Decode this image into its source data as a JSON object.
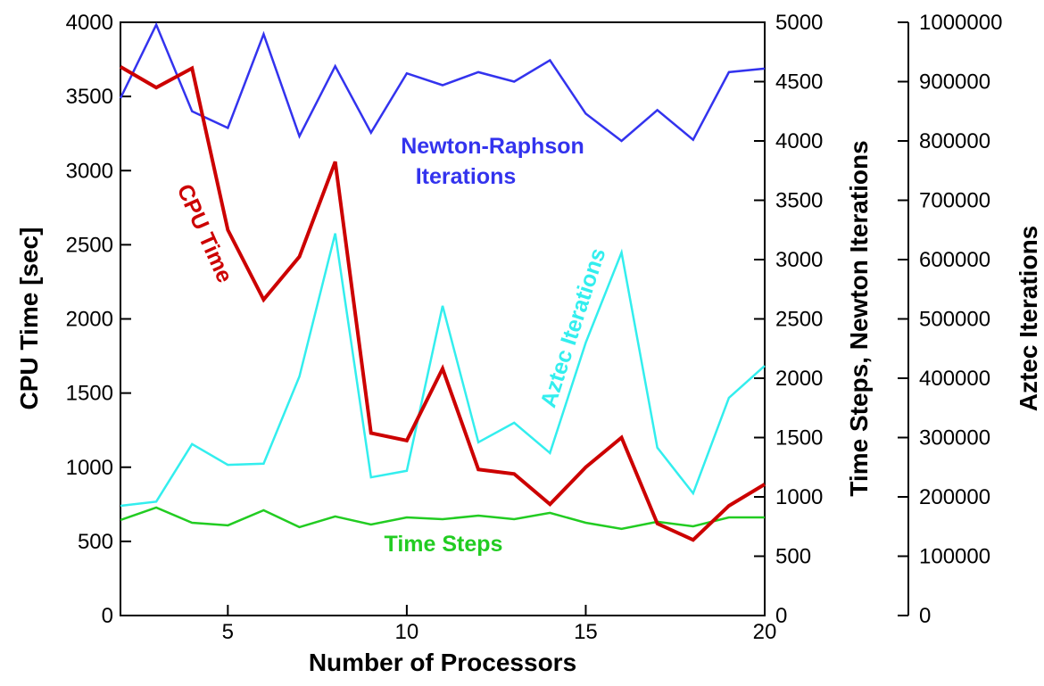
{
  "chart_data": {
    "type": "line",
    "x_label": "Number of Processors",
    "y_label": "CPU Time [sec]",
    "y2_label": "Time Steps, Newton Iterations",
    "y3_label": "Aztec Iterations",
    "annotations": [
      "Newton-Raphson",
      "Iterations",
      "CPU Time",
      "Aztec Iterations",
      "Time Steps"
    ],
    "x": [
      2,
      3,
      4,
      5,
      6,
      7,
      8,
      9,
      10,
      11,
      12,
      13,
      14,
      15,
      16,
      17,
      18,
      19,
      20
    ],
    "xlim": [
      2,
      20
    ],
    "xticks": [
      5,
      10,
      15,
      20
    ],
    "ylim": [
      0,
      4000
    ],
    "yticks": [
      0,
      500,
      1000,
      1500,
      2000,
      2500,
      3000,
      3500,
      4000
    ],
    "y2lim": [
      0,
      5000
    ],
    "y2ticks": [
      0,
      500,
      1000,
      1500,
      2000,
      2500,
      3000,
      3500,
      4000,
      4500,
      5000
    ],
    "y3lim": [
      0,
      1000000
    ],
    "y3ticks": [
      0,
      100000,
      200000,
      300000,
      400000,
      500000,
      600000,
      700000,
      800000,
      900000,
      1000000
    ],
    "series": [
      {
        "name": "CPU Time",
        "color": "#cc0000",
        "axis": "y",
        "width": 4,
        "values": [
          3700,
          3560,
          3690,
          2600,
          2130,
          2420,
          3060,
          1230,
          1180,
          1665,
          985,
          955,
          750,
          1000,
          1200,
          620,
          510,
          740,
          885
        ]
      },
      {
        "name": "Newton-Raphson Iterations",
        "color": "#3333ee",
        "axis": "y2",
        "width": 2.5,
        "values": [
          4360,
          4980,
          4250,
          4110,
          4900,
          4040,
          4630,
          4070,
          4570,
          4470,
          4580,
          4500,
          4680,
          4230,
          4000,
          4260,
          4010,
          4580,
          4610
        ]
      },
      {
        "name": "Aztec Iterations",
        "color": "#33eeee",
        "axis": "y3",
        "width": 2.5,
        "values": [
          185000,
          192000,
          289000,
          254000,
          256000,
          403000,
          644000,
          233000,
          244000,
          522000,
          292000,
          325000,
          274000,
          460000,
          612000,
          283000,
          206000,
          367000,
          421000
        ]
      },
      {
        "name": "Time Steps",
        "color": "#22cc22",
        "axis": "y2",
        "width": 2.5,
        "values": [
          805,
          910,
          782,
          760,
          887,
          745,
          835,
          767,
          827,
          812,
          842,
          812,
          865,
          782,
          730,
          790,
          752,
          827,
          827
        ]
      }
    ]
  }
}
